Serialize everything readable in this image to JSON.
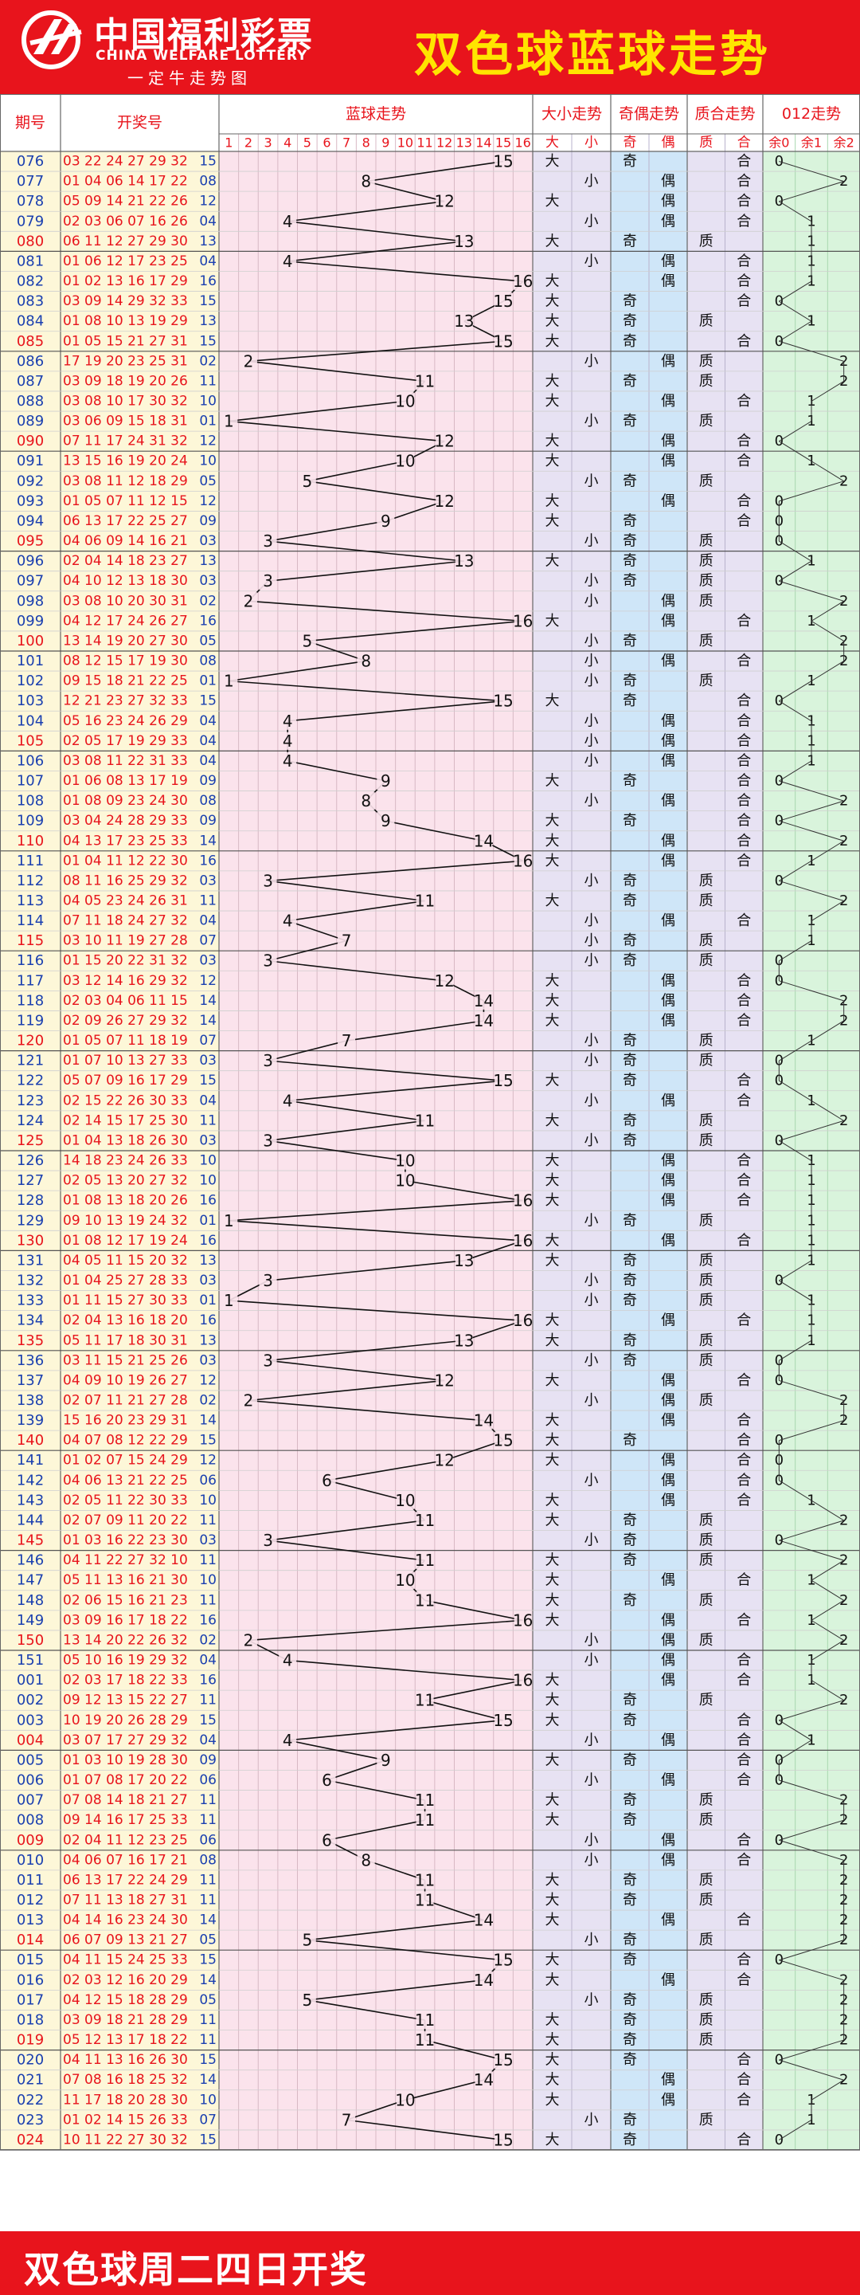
{
  "header": {
    "logo_cn": "中国福利彩票",
    "logo_en": "CHINA WELFARE LOTTERY",
    "logo_sub": "一定牛走势图",
    "title": "双色球蓝球走势"
  },
  "footer": {
    "text": "双色球周二四日开奖"
  },
  "columns": {
    "issue": "期号",
    "draw": "开奖号",
    "blue": "蓝球走势",
    "size": "大小走势",
    "parity": "奇偶走势",
    "prime": "质合走势",
    "mod": "012走势"
  },
  "sub_labels": {
    "big": "大",
    "small": "小",
    "odd": "奇",
    "even": "偶",
    "prime": "质",
    "composite": "合",
    "r0": "余0",
    "r1": "余1",
    "r2": "余2"
  },
  "colors": {
    "brand_red": "#e8141c",
    "title_yellow": "#ffe400",
    "issue_bg": "#fdf7d8",
    "blue_bg": "#fbe3ec",
    "size_bg": "#e7e2f3",
    "parity_bg": "#cfe6f8",
    "prime_bg": "#e7e2f3",
    "mod_bg": "#d9f4dc",
    "head_red": "#e8141c"
  },
  "chart_data": {
    "type": "table",
    "blue_range": [
      1,
      16
    ],
    "rows": [
      {
        "issue": "076",
        "reds": "03 22 24 27 29 32",
        "blue": 15
      },
      {
        "issue": "077",
        "reds": "01 04 06 14 17 22",
        "blue": 8
      },
      {
        "issue": "078",
        "reds": "05 09 14 21 22 26",
        "blue": 12
      },
      {
        "issue": "079",
        "reds": "02 03 06 07 16 26",
        "blue": 4
      },
      {
        "issue": "080",
        "reds": "06 11 12 27 29 30",
        "blue": 13
      },
      {
        "issue": "081",
        "reds": "01 06 12 17 23 25",
        "blue": 4
      },
      {
        "issue": "082",
        "reds": "01 02 13 16 17 29",
        "blue": 16
      },
      {
        "issue": "083",
        "reds": "03 09 14 29 32 33",
        "blue": 15
      },
      {
        "issue": "084",
        "reds": "01 08 10 13 19 29",
        "blue": 13
      },
      {
        "issue": "085",
        "reds": "01 05 15 21 27 31",
        "blue": 15
      },
      {
        "issue": "086",
        "reds": "17 19 20 23 25 31",
        "blue": 2
      },
      {
        "issue": "087",
        "reds": "03 09 18 19 20 26",
        "blue": 11
      },
      {
        "issue": "088",
        "reds": "03 08 10 17 30 32",
        "blue": 10
      },
      {
        "issue": "089",
        "reds": "03 06 09 15 18 31",
        "blue": 1
      },
      {
        "issue": "090",
        "reds": "07 11 17 24 31 32",
        "blue": 12
      },
      {
        "issue": "091",
        "reds": "13 15 16 19 20 24",
        "blue": 10
      },
      {
        "issue": "092",
        "reds": "03 08 11 12 18 29",
        "blue": 5
      },
      {
        "issue": "093",
        "reds": "01 05 07 11 12 15",
        "blue": 12
      },
      {
        "issue": "094",
        "reds": "06 13 17 22 25 27",
        "blue": 9
      },
      {
        "issue": "095",
        "reds": "04 06 09 14 16 21",
        "blue": 3
      },
      {
        "issue": "096",
        "reds": "02 04 14 18 23 27",
        "blue": 13
      },
      {
        "issue": "097",
        "reds": "04 10 12 13 18 30",
        "blue": 3
      },
      {
        "issue": "098",
        "reds": "03 08 10 20 30 31",
        "blue": 2
      },
      {
        "issue": "099",
        "reds": "04 12 17 24 26 27",
        "blue": 16
      },
      {
        "issue": "100",
        "reds": "13 14 19 20 27 30",
        "blue": 5
      },
      {
        "issue": "101",
        "reds": "08 12 15 17 19 30",
        "blue": 8
      },
      {
        "issue": "102",
        "reds": "09 15 18 21 22 25",
        "blue": 1
      },
      {
        "issue": "103",
        "reds": "12 21 23 27 32 33",
        "blue": 15
      },
      {
        "issue": "104",
        "reds": "05 16 23 24 26 29",
        "blue": 4
      },
      {
        "issue": "105",
        "reds": "02 05 17 19 29 33",
        "blue": 4
      },
      {
        "issue": "106",
        "reds": "03 08 11 22 31 33",
        "blue": 4
      },
      {
        "issue": "107",
        "reds": "01 06 08 13 17 19",
        "blue": 9
      },
      {
        "issue": "108",
        "reds": "01 08 09 23 24 30",
        "blue": 8
      },
      {
        "issue": "109",
        "reds": "03 04 24 28 29 33",
        "blue": 9
      },
      {
        "issue": "110",
        "reds": "04 13 17 23 25 33",
        "blue": 14
      },
      {
        "issue": "111",
        "reds": "01 04 11 12 22 30",
        "blue": 16
      },
      {
        "issue": "112",
        "reds": "08 11 16 25 29 32",
        "blue": 3
      },
      {
        "issue": "113",
        "reds": "04 05 23 24 26 31",
        "blue": 11
      },
      {
        "issue": "114",
        "reds": "07 11 18 24 27 32",
        "blue": 4
      },
      {
        "issue": "115",
        "reds": "03 10 11 19 27 28",
        "blue": 7
      },
      {
        "issue": "116",
        "reds": "01 15 20 22 31 32",
        "blue": 3
      },
      {
        "issue": "117",
        "reds": "03 12 14 16 29 32",
        "blue": 12
      },
      {
        "issue": "118",
        "reds": "02 03 04 06 11 15",
        "blue": 14
      },
      {
        "issue": "119",
        "reds": "02 09 26 27 29 32",
        "blue": 14
      },
      {
        "issue": "120",
        "reds": "01 05 07 11 18 19",
        "blue": 7
      },
      {
        "issue": "121",
        "reds": "01 07 10 13 27 33",
        "blue": 3
      },
      {
        "issue": "122",
        "reds": "05 07 09 16 17 29",
        "blue": 15
      },
      {
        "issue": "123",
        "reds": "02 15 22 26 30 33",
        "blue": 4
      },
      {
        "issue": "124",
        "reds": "02 14 15 17 25 30",
        "blue": 11
      },
      {
        "issue": "125",
        "reds": "01 04 13 18 26 30",
        "blue": 3
      },
      {
        "issue": "126",
        "reds": "14 18 23 24 26 33",
        "blue": 10
      },
      {
        "issue": "127",
        "reds": "02 05 13 20 27 32",
        "blue": 10
      },
      {
        "issue": "128",
        "reds": "01 08 13 18 20 26",
        "blue": 16
      },
      {
        "issue": "129",
        "reds": "09 10 13 19 24 32",
        "blue": 1
      },
      {
        "issue": "130",
        "reds": "01 08 12 17 19 24",
        "blue": 16
      },
      {
        "issue": "131",
        "reds": "04 05 11 15 20 32",
        "blue": 13
      },
      {
        "issue": "132",
        "reds": "01 04 25 27 28 33",
        "blue": 3
      },
      {
        "issue": "133",
        "reds": "01 11 15 27 30 33",
        "blue": 1
      },
      {
        "issue": "134",
        "reds": "02 04 13 16 18 20",
        "blue": 16
      },
      {
        "issue": "135",
        "reds": "05 11 17 18 30 31",
        "blue": 13
      },
      {
        "issue": "136",
        "reds": "03 11 15 21 25 26",
        "blue": 3
      },
      {
        "issue": "137",
        "reds": "04 09 10 19 26 27",
        "blue": 12
      },
      {
        "issue": "138",
        "reds": "02 07 11 21 27 28",
        "blue": 2
      },
      {
        "issue": "139",
        "reds": "15 16 20 23 29 31",
        "blue": 14
      },
      {
        "issue": "140",
        "reds": "04 07 08 12 22 29",
        "blue": 15
      },
      {
        "issue": "141",
        "reds": "01 02 07 15 24 29",
        "blue": 12
      },
      {
        "issue": "142",
        "reds": "04 06 13 21 22 25",
        "blue": 6
      },
      {
        "issue": "143",
        "reds": "02 05 11 22 30 33",
        "blue": 10
      },
      {
        "issue": "144",
        "reds": "02 07 09 11 20 22",
        "blue": 11
      },
      {
        "issue": "145",
        "reds": "01 03 16 22 23 30",
        "blue": 3
      },
      {
        "issue": "146",
        "reds": "04 11 22 27 32 10",
        "blue": 11
      },
      {
        "issue": "147",
        "reds": "05 11 13 16 21 30",
        "blue": 10
      },
      {
        "issue": "148",
        "reds": "02 06 15 16 21 23",
        "blue": 11
      },
      {
        "issue": "149",
        "reds": "03 09 16 17 18 22",
        "blue": 16
      },
      {
        "issue": "150",
        "reds": "13 14 20 22 26 32",
        "blue": 2
      },
      {
        "issue": "151",
        "reds": "05 10 16 19 29 32",
        "blue": 4
      },
      {
        "issue": "001",
        "reds": "02 03 17 18 22 33",
        "blue": 16
      },
      {
        "issue": "002",
        "reds": "09 12 13 15 22 27",
        "blue": 11
      },
      {
        "issue": "003",
        "reds": "10 19 20 26 28 29",
        "blue": 15
      },
      {
        "issue": "004",
        "reds": "03 07 17 27 29 32",
        "blue": 4
      },
      {
        "issue": "005",
        "reds": "01 03 10 19 28 30",
        "blue": 9
      },
      {
        "issue": "006",
        "reds": "01 07 08 17 20 22",
        "blue": 6
      },
      {
        "issue": "007",
        "reds": "07 08 14 18 21 27",
        "blue": 11
      },
      {
        "issue": "008",
        "reds": "09 14 16 17 25 33",
        "blue": 11
      },
      {
        "issue": "009",
        "reds": "02 04 11 12 23 25",
        "blue": 6
      },
      {
        "issue": "010",
        "reds": "04 06 07 16 17 21",
        "blue": 8
      },
      {
        "issue": "011",
        "reds": "06 13 17 22 24 29",
        "blue": 11
      },
      {
        "issue": "012",
        "reds": "07 11 13 18 27 31",
        "blue": 11
      },
      {
        "issue": "013",
        "reds": "04 14 16 23 24 30",
        "blue": 14
      },
      {
        "issue": "014",
        "reds": "06 07 09 13 21 27",
        "blue": 5
      },
      {
        "issue": "015",
        "reds": "04 11 15 24 25 33",
        "blue": 15
      },
      {
        "issue": "016",
        "reds": "02 03 12 16 20 29",
        "blue": 14
      },
      {
        "issue": "017",
        "reds": "04 12 15 18 28 29",
        "blue": 5
      },
      {
        "issue": "018",
        "reds": "03 09 18 21 28 29",
        "blue": 11
      },
      {
        "issue": "019",
        "reds": "05 12 13 17 18 22",
        "blue": 11
      },
      {
        "issue": "020",
        "reds": "04 11 13 16 26 30",
        "blue": 15
      },
      {
        "issue": "021",
        "reds": "07 08 16 18 25 32",
        "blue": 14
      },
      {
        "issue": "022",
        "reds": "11 17 18 20 28 30",
        "blue": 10
      },
      {
        "issue": "023",
        "reds": "01 02 14 15 26 33",
        "blue": 7
      },
      {
        "issue": "024",
        "reds": "10 11 22 27 30 32",
        "blue": 15
      }
    ]
  }
}
